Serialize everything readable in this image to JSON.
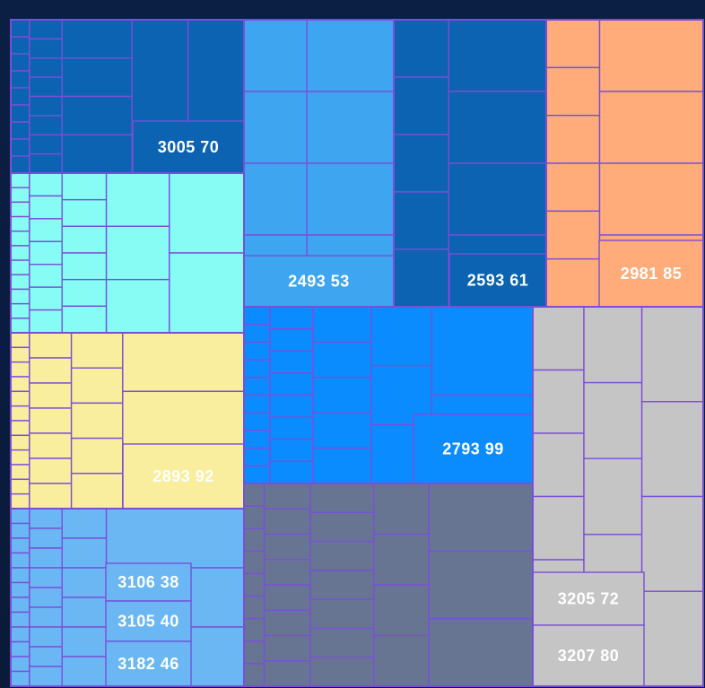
{
  "chart_data": {
    "type": "treemap",
    "groups": [
      {
        "color": "#0b63b1",
        "labels": [
          {
            "id": "3005",
            "value": 70
          }
        ]
      },
      {
        "color": "#3ea6f0",
        "labels": [
          {
            "id": "2493",
            "value": 53
          }
        ]
      },
      {
        "color": "#0b63b1",
        "labels": [
          {
            "id": "2593",
            "value": 61
          }
        ]
      },
      {
        "color": "#ffac7a",
        "labels": [
          {
            "id": "2981",
            "value": 85
          }
        ]
      },
      {
        "color": "#87fcf4",
        "labels": []
      },
      {
        "color": "#f9ee9e",
        "labels": [
          {
            "id": "2893",
            "value": 92
          }
        ]
      },
      {
        "color": "#0a8cff",
        "labels": [
          {
            "id": "2793",
            "value": 99
          }
        ]
      },
      {
        "color": "#c5c5c5",
        "labels": [
          {
            "id": "3205",
            "value": 72
          },
          {
            "id": "3207",
            "value": 80
          }
        ]
      },
      {
        "color": "#6ab7f4",
        "labels": [
          {
            "id": "3106",
            "value": 38
          },
          {
            "id": "3105",
            "value": 40
          },
          {
            "id": "3182",
            "value": 46
          }
        ]
      },
      {
        "color": "#677593",
        "labels": []
      }
    ]
  }
}
